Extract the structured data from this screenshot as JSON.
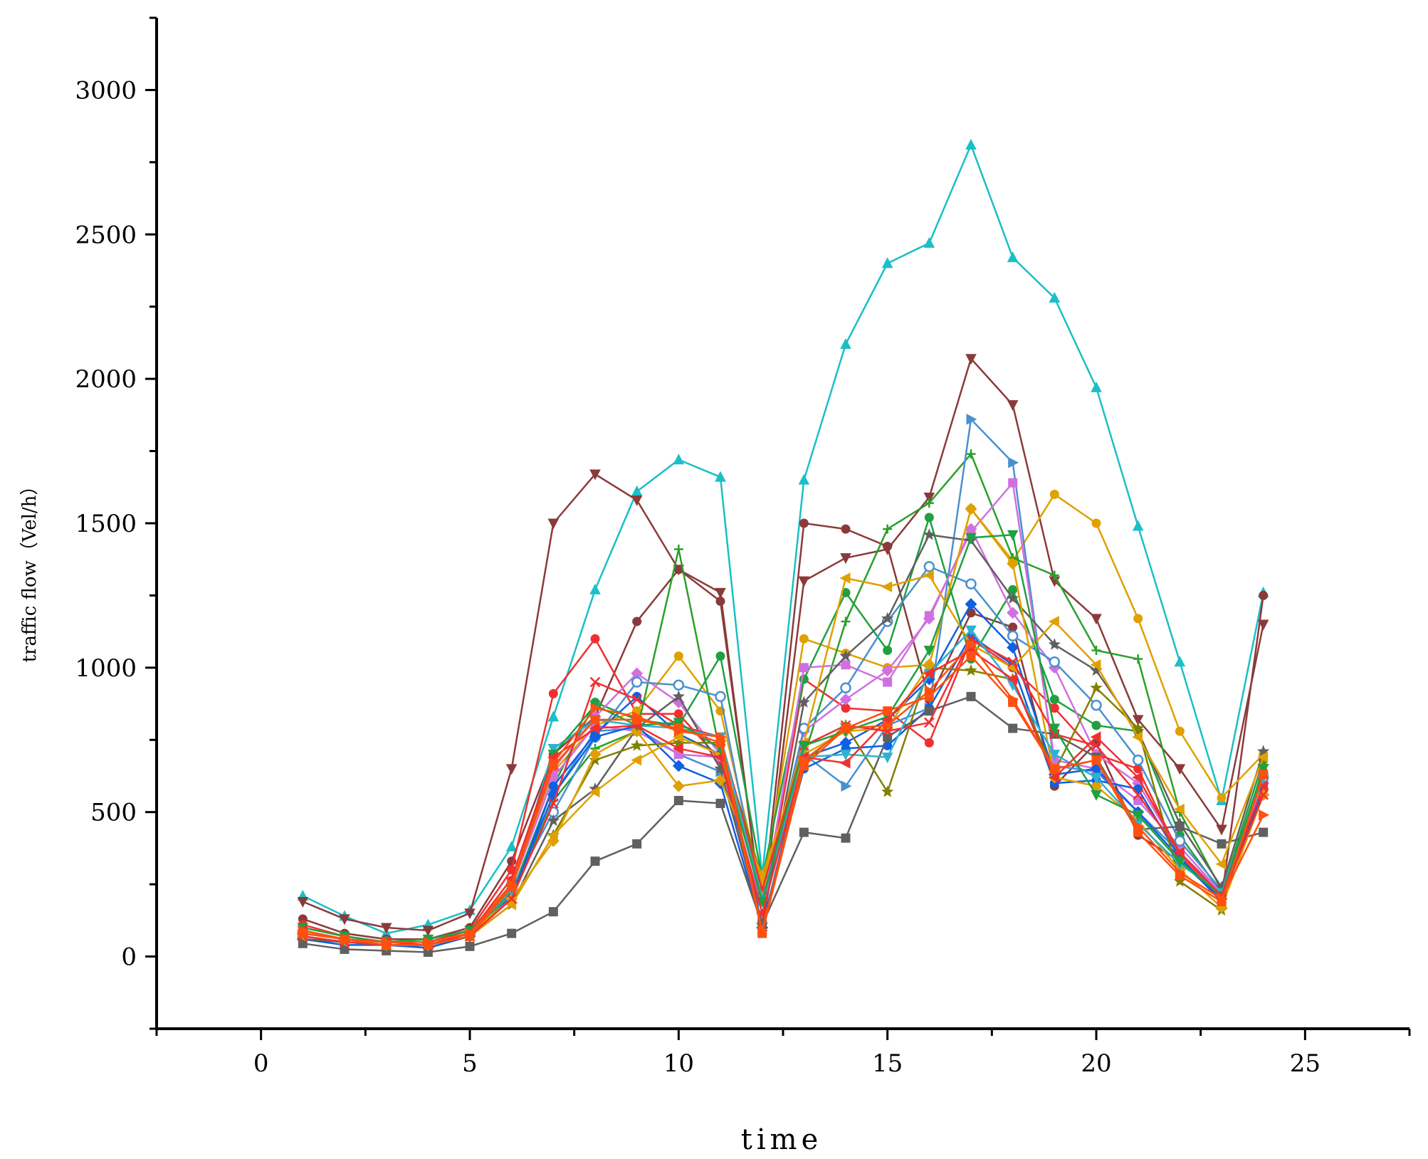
{
  "chart_data": {
    "type": "line",
    "xlabel": "time",
    "ylabel": "traffic flow（Vel/h）",
    "xlim": [
      -2.5,
      27.5
    ],
    "ylim": [
      -250,
      3250
    ],
    "x_ticks": [
      0,
      5,
      10,
      15,
      20,
      25
    ],
    "y_ticks": [
      0,
      500,
      1000,
      1500,
      2000,
      2500,
      3000
    ],
    "x_minor_step": 2.5,
    "y_minor_step": 250,
    "grid": false,
    "legend": "none",
    "x": [
      1,
      2,
      3,
      4,
      5,
      6,
      7,
      8,
      9,
      10,
      11,
      12,
      13,
      14,
      15,
      16,
      17,
      18,
      19,
      20,
      21,
      22,
      23,
      24
    ],
    "series": [
      {
        "color": "#1ABFC7",
        "marker": "triangle-up",
        "values": [
          210,
          140,
          80,
          110,
          160,
          380,
          830,
          1270,
          1610,
          1720,
          1660,
          280,
          1650,
          2120,
          2400,
          2470,
          2810,
          2420,
          2280,
          1970,
          1490,
          1020,
          540,
          1260
        ]
      },
      {
        "color": "#8B3A3A",
        "marker": "triangle-down",
        "values": [
          190,
          130,
          100,
          90,
          150,
          650,
          1500,
          1670,
          1580,
          1340,
          1260,
          140,
          1300,
          1380,
          1410,
          1590,
          2070,
          1910,
          1300,
          1170,
          820,
          650,
          440,
          1150
        ]
      },
      {
        "color": "#8B3A3A",
        "marker": "circle",
        "values": [
          130,
          80,
          60,
          60,
          100,
          330,
          700,
          830,
          1160,
          1340,
          1230,
          150,
          1500,
          1480,
          1420,
          890,
          1190,
          1140,
          590,
          740,
          420,
          330,
          200,
          1250
        ]
      },
      {
        "color": "#F03030",
        "marker": "circle",
        "values": [
          110,
          70,
          50,
          50,
          90,
          300,
          910,
          1100,
          840,
          840,
          680,
          130,
          960,
          860,
          850,
          740,
          1100,
          1000,
          860,
          700,
          650,
          350,
          190,
          640
        ]
      },
      {
        "color": "#E0A000",
        "marker": "circle",
        "values": [
          100,
          70,
          50,
          60,
          90,
          250,
          640,
          800,
          850,
          1040,
          850,
          230,
          1100,
          1050,
          1000,
          1010,
          1550,
          1370,
          1600,
          1500,
          1170,
          780,
          550,
          700
        ]
      },
      {
        "color": "#2AA02A",
        "marker": "plus",
        "values": [
          90,
          60,
          50,
          50,
          80,
          200,
          540,
          720,
          780,
          1410,
          700,
          260,
          690,
          1160,
          1480,
          1570,
          1740,
          1380,
          1320,
          1060,
          1030,
          500,
          230,
          620
        ]
      },
      {
        "color": "#20A040",
        "marker": "circle",
        "values": [
          80,
          60,
          50,
          50,
          80,
          220,
          590,
          880,
          820,
          800,
          1040,
          270,
          960,
          1260,
          1060,
          1520,
          1030,
          1270,
          890,
          800,
          780,
          420,
          220,
          680
        ]
      },
      {
        "color": "#4A90D0",
        "marker": "triangle-right",
        "values": [
          70,
          50,
          40,
          40,
          70,
          210,
          560,
          780,
          790,
          700,
          640,
          180,
          700,
          590,
          800,
          860,
          1860,
          1710,
          660,
          640,
          500,
          360,
          210,
          580
        ]
      },
      {
        "color": "#D070E0",
        "marker": "square",
        "values": [
          70,
          50,
          40,
          40,
          70,
          240,
          620,
          800,
          780,
          700,
          690,
          160,
          1000,
          1010,
          950,
          1180,
          1470,
          1640,
          680,
          650,
          540,
          380,
          220,
          610
        ]
      },
      {
        "color": "#D070E0",
        "marker": "diamond",
        "values": [
          80,
          60,
          40,
          40,
          80,
          250,
          650,
          830,
          980,
          880,
          700,
          150,
          780,
          890,
          990,
          1170,
          1480,
          1190,
          1000,
          700,
          600,
          360,
          220,
          600
        ]
      },
      {
        "color": "#4A90D0",
        "marker": "open-circle",
        "values": [
          80,
          60,
          50,
          50,
          80,
          230,
          500,
          760,
          950,
          940,
          900,
          170,
          790,
          930,
          1160,
          1350,
          1290,
          1110,
          1020,
          870,
          680,
          400,
          230,
          620
        ]
      },
      {
        "color": "#1060E0",
        "marker": "circle",
        "values": [
          60,
          40,
          40,
          30,
          70,
          200,
          590,
          770,
          900,
          770,
          700,
          110,
          650,
          720,
          730,
          860,
          1110,
          1010,
          600,
          610,
          580,
          340,
          190,
          580
        ]
      },
      {
        "color": "#1060E0",
        "marker": "diamond",
        "values": [
          60,
          50,
          40,
          30,
          70,
          210,
          560,
          760,
          800,
          660,
          600,
          100,
          690,
          740,
          820,
          960,
          1220,
          1070,
          630,
          650,
          500,
          340,
          200,
          560
        ]
      },
      {
        "color": "#606060",
        "marker": "star",
        "values": [
          60,
          50,
          40,
          40,
          70,
          180,
          470,
          580,
          790,
          900,
          650,
          110,
          880,
          1040,
          1170,
          1460,
          1440,
          1240,
          1080,
          990,
          780,
          460,
          240,
          710
        ]
      },
      {
        "color": "#606060",
        "marker": "square",
        "values": [
          45,
          25,
          20,
          15,
          35,
          80,
          155,
          330,
          390,
          540,
          530,
          110,
          430,
          410,
          760,
          850,
          900,
          790,
          770,
          690,
          440,
          450,
          390,
          430
        ]
      },
      {
        "color": "#808000",
        "marker": "star",
        "values": [
          70,
          50,
          40,
          40,
          70,
          180,
          420,
          680,
          730,
          740,
          740,
          270,
          670,
          800,
          570,
          1000,
          990,
          960,
          640,
          930,
          790,
          260,
          160,
          660
        ]
      },
      {
        "color": "#E0A000",
        "marker": "triangle-left",
        "values": [
          70,
          50,
          40,
          40,
          70,
          180,
          420,
          570,
          680,
          760,
          700,
          250,
          740,
          1310,
          1280,
          1320,
          1080,
          1000,
          1160,
          1010,
          760,
          510,
          320,
          690
        ]
      },
      {
        "color": "#E0A000",
        "marker": "diamond",
        "values": [
          80,
          60,
          40,
          40,
          80,
          200,
          400,
          700,
          780,
          590,
          610,
          280,
          700,
          780,
          790,
          1010,
          1550,
          1360,
          620,
          590,
          470,
          300,
          170,
          560
        ]
      },
      {
        "color": "#F03030",
        "marker": "x",
        "values": [
          70,
          50,
          40,
          40,
          70,
          200,
          530,
          950,
          890,
          800,
          760,
          230,
          730,
          800,
          780,
          810,
          1100,
          1020,
          770,
          730,
          560,
          360,
          200,
          560
        ]
      },
      {
        "color": "#30B0D0",
        "marker": "triangle-down",
        "values": [
          90,
          60,
          50,
          50,
          80,
          230,
          720,
          820,
          800,
          790,
          760,
          200,
          690,
          700,
          690,
          980,
          1130,
          940,
          700,
          620,
          460,
          320,
          220,
          620
        ]
      },
      {
        "color": "#20A040",
        "marker": "triangle-down",
        "values": [
          100,
          70,
          50,
          60,
          90,
          240,
          700,
          870,
          800,
          810,
          720,
          190,
          730,
          780,
          830,
          1060,
          1450,
          1460,
          790,
          560,
          490,
          330,
          210,
          650
        ]
      },
      {
        "color": "#F03030",
        "marker": "triangle-left",
        "values": [
          90,
          60,
          50,
          40,
          80,
          270,
          690,
          790,
          800,
          720,
          690,
          150,
          690,
          670,
          820,
          980,
          1060,
          960,
          620,
          760,
          620,
          360,
          210,
          590
        ]
      },
      {
        "color": "#FF5010",
        "marker": "triangle-right",
        "values": [
          90,
          60,
          50,
          50,
          80,
          250,
          670,
          860,
          830,
          780,
          760,
          90,
          680,
          790,
          800,
          920,
          1080,
          890,
          650,
          680,
          450,
          290,
          200,
          490
        ]
      },
      {
        "color": "#FF5010",
        "marker": "square",
        "values": [
          80,
          60,
          40,
          40,
          70,
          240,
          660,
          820,
          820,
          790,
          740,
          80,
          660,
          790,
          850,
          900,
          1040,
          880,
          650,
          680,
          430,
          280,
          190,
          630
        ]
      }
    ]
  }
}
